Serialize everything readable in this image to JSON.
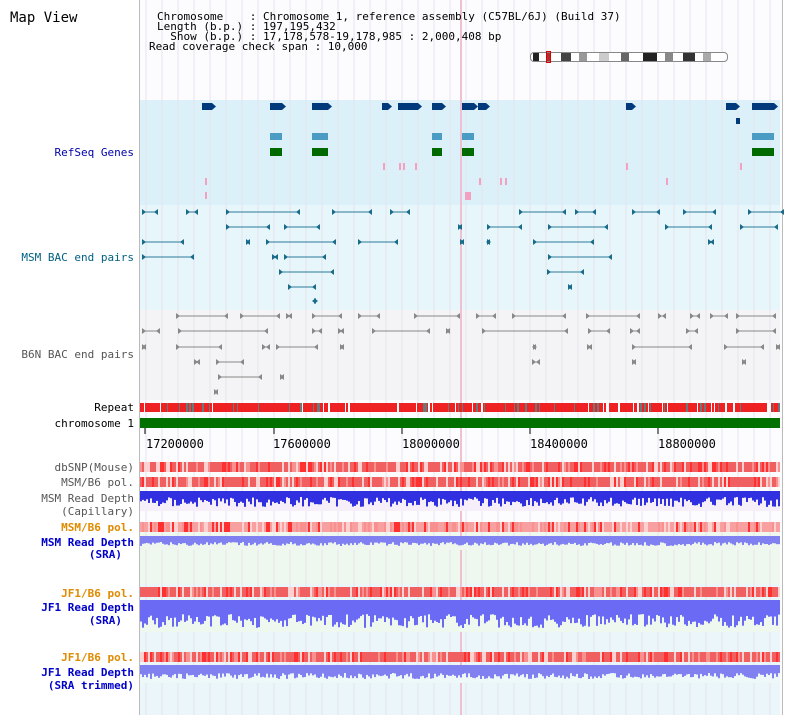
{
  "header": {
    "title": "Map View",
    "info_lines": [
      "Chromosome    : Chromosome 1, reference assembly (C57BL/6J) (Build 37)",
      "Length (b.p.) : 197,195,432",
      "  Show (b.p.) : 17,178,578-19,178,985 : 2,000,408 bp",
      "Read coverage check span : 10,000"
    ]
  },
  "tracks": {
    "refseq": {
      "label": "RefSeq Genes",
      "color": "#0000aa"
    },
    "msm_bac": {
      "label": "MSM BAC end pairs",
      "color": "#006080"
    },
    "b6n_bac": {
      "label": "B6N BAC end pairs",
      "color": "#555555"
    },
    "repeat": {
      "label": "Repeat"
    },
    "chromosome": {
      "label": "chromosome 1"
    },
    "dbsnp": {
      "label": "dbSNP(Mouse)",
      "color": "#555555"
    },
    "msm_b6_pol_1": {
      "label": "MSM/B6 pol.",
      "color": "#555555"
    },
    "msm_read_cap": {
      "label_line1": "MSM Read Depth",
      "label_line2": "(Capillary)",
      "color": "#555555"
    },
    "msm_b6_pol_2": {
      "label": "MSM/B6 pol.",
      "color": "#e08a00"
    },
    "msm_read_sra": {
      "label_line1": "MSM Read Depth",
      "label_line2": "(SRA)",
      "color": "#0000cc"
    },
    "jf1_b6_pol_1": {
      "label": "JF1/B6 pol.",
      "color": "#e08a00"
    },
    "jf1_read_sra": {
      "label_line1": "JF1 Read Depth",
      "label_line2": "(SRA)",
      "color": "#0000cc"
    },
    "jf1_b6_pol_2": {
      "label": "JF1/B6 pol.",
      "color": "#e08a00"
    },
    "jf1_read_trim": {
      "label_line1": "JF1 Read Depth",
      "label_line2": "(SRA trimmed)",
      "color": "#0000cc"
    }
  },
  "axis": {
    "ticks": [
      "17200000",
      "17600000",
      "18000000",
      "18400000",
      "18800000"
    ]
  },
  "colors": {
    "refseq_bg": "#dcf0fa",
    "msm_bg": "#e6f6fa",
    "b6n_bg": "#f4f4f6",
    "repeat_red": "#ee2222",
    "chrom_green": "#007000",
    "snp_red": "#f06060",
    "depth_blue": "#3030e0",
    "sra_blue": "#8080f0"
  }
}
